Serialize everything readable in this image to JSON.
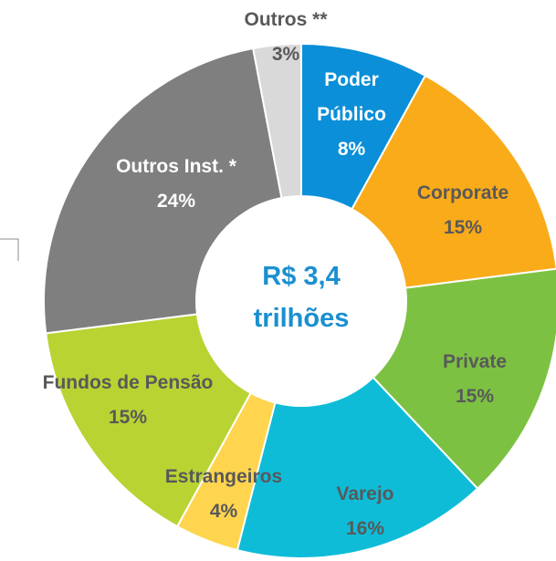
{
  "chart_data": {
    "type": "donut",
    "center_text": [
      "R$ 3,4",
      "trilhões"
    ],
    "categories": [
      "Poder Público",
      "Corporate",
      "Private",
      "Varejo",
      "Estrangeiros",
      "Fundos de Pensão",
      "Outros Inst. *",
      "Outros **"
    ],
    "values": [
      8,
      15,
      15,
      16,
      4,
      15,
      24,
      3
    ],
    "value_labels": [
      "8%",
      "15%",
      "15%",
      "16%",
      "4%",
      "15%",
      "24%",
      "3%"
    ],
    "colors": [
      "#0a8fd8",
      "#f9ab1a",
      "#7dc143",
      "#0ebcd8",
      "#ffd54f",
      "#b8d332",
      "#7f7f7f",
      "#d9d9d9"
    ]
  }
}
